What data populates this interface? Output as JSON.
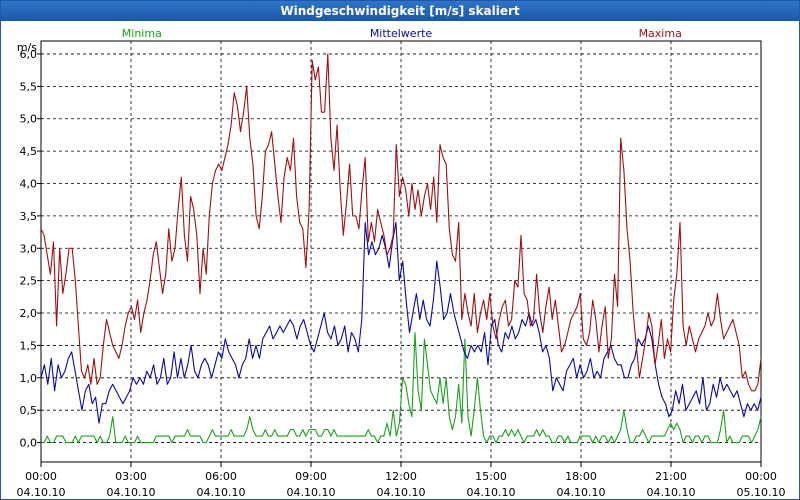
{
  "window": {
    "title": "Windgeschwindigkeit [m/s] skaliert"
  },
  "chart_data": {
    "type": "line",
    "title": "Windgeschwindigkeit [m/s] skaliert",
    "ylabel": "m/s",
    "ylim": [
      -0.3,
      6.2
    ],
    "yticks": [
      "0,0",
      "0,5",
      "1,0",
      "1,5",
      "2,0",
      "2,5",
      "3,0",
      "3,5",
      "4,0",
      "4,5",
      "5,0",
      "5,5",
      "6,0"
    ],
    "xlim": [
      0,
      24
    ],
    "xticks": [
      {
        "time": "00:00",
        "date": "04.10.10"
      },
      {
        "time": "03:00",
        "date": "04.10.10"
      },
      {
        "time": "06:00",
        "date": "04.10.10"
      },
      {
        "time": "09:00",
        "date": "04.10.10"
      },
      {
        "time": "12:00",
        "date": "04.10.10"
      },
      {
        "time": "15:00",
        "date": "04.10.10"
      },
      {
        "time": "18:00",
        "date": "04.10.10"
      },
      {
        "time": "21:00",
        "date": "04.10.10"
      },
      {
        "time": "00:00",
        "date": "05.10.10"
      }
    ],
    "grid": true,
    "legend_placement": "top",
    "series": [
      {
        "name": "Minima",
        "color": "#1aa01a",
        "values": [
          0.0,
          0.0,
          0.1,
          0.0,
          0.0,
          0.1,
          0.1,
          0.1,
          0.0,
          0.0,
          0.0,
          0.1,
          0.0,
          0.1,
          0.1,
          0.1,
          0.1,
          0.1,
          0.0,
          0.1,
          0.0,
          0.0,
          0.1,
          0.4,
          0.0,
          0.0,
          0.0,
          0.1,
          0.0,
          0.0,
          0.0,
          0.1,
          0.0,
          0.0,
          0.0,
          0.0,
          0.0,
          0.1,
          0.1,
          0.1,
          0.1,
          0.1,
          0.0,
          0.1,
          0.1,
          0.1,
          0.1,
          0.2,
          0.1,
          0.1,
          0.1,
          0.1,
          0.0,
          0.0,
          0.1,
          0.2,
          0.1,
          0.1,
          0.1,
          0.1,
          0.1,
          0.2,
          0.1,
          0.1,
          0.1,
          0.1,
          0.2,
          0.4,
          0.2,
          0.1,
          0.1,
          0.1,
          0.2,
          0.1,
          0.1,
          0.2,
          0.1,
          0.1,
          0.1,
          0.1,
          0.2,
          0.2,
          0.1,
          0.1,
          0.2,
          0.1,
          0.2,
          0.2,
          0.2,
          0.1,
          0.1,
          0.2,
          0.2,
          0.1,
          0.2,
          0.1,
          0.1,
          0.1,
          0.1,
          0.1,
          0.1,
          0.1,
          0.1,
          0.1,
          0.1,
          0.2,
          0.1,
          0.1,
          0.0,
          0.1,
          0.1,
          0.3,
          0.1,
          0.5,
          0.1,
          0.3,
          1.0,
          0.9,
          0.6,
          0.4,
          1.7,
          0.8,
          0.5,
          1.6,
          1.2,
          0.8,
          0.7,
          0.6,
          1.0,
          0.6,
          1.0,
          0.4,
          0.2,
          0.4,
          0.9,
          0.3,
          1.6,
          0.4,
          0.1,
          0.5,
          1.0,
          0.5,
          0.1,
          0.0,
          0.1,
          0.1,
          0.0,
          0.1,
          0.1,
          0.2,
          0.1,
          0.2,
          0.1,
          0.2,
          0.1,
          0.0,
          0.1,
          0.1,
          0.1,
          0.2,
          0.1,
          0.2,
          0.1,
          0.1,
          0.0,
          0.0,
          0.1,
          0.1,
          0.0,
          0.1,
          0.0,
          0.0,
          0.0,
          0.1,
          0.1,
          0.1,
          0.1,
          0.0,
          0.1,
          0.0,
          0.1,
          0.1,
          0.0,
          0.1,
          0.0,
          0.1,
          0.2,
          0.5,
          0.2,
          0.0,
          0.0,
          0.1,
          0.1,
          0.2,
          0.1,
          0.0,
          0.1,
          0.1,
          0.1,
          0.1,
          0.1,
          0.2,
          0.3,
          0.2,
          0.3,
          0.2,
          0.0,
          0.1,
          0.1,
          0.0,
          0.1,
          0.1,
          0.0,
          0.1,
          0.1,
          0.0,
          0.0,
          0.0,
          0.2,
          0.5,
          0.0,
          0.1,
          0.0,
          0.0,
          0.0,
          0.1,
          0.1,
          0.1,
          0.0,
          0.1,
          0.2,
          0.4
        ]
      },
      {
        "name": "Mittelwerte",
        "color": "#0a0a9e",
        "values": [
          1.0,
          1.2,
          0.9,
          1.3,
          0.8,
          1.2,
          1.0,
          1.1,
          1.3,
          1.4,
          1.1,
          0.8,
          0.5,
          0.8,
          0.9,
          0.6,
          0.7,
          0.3,
          0.6,
          0.6,
          0.8,
          0.9,
          0.8,
          0.7,
          0.6,
          0.7,
          0.8,
          1.0,
          0.9,
          1.0,
          0.9,
          1.1,
          1.0,
          1.2,
          0.9,
          1.0,
          1.3,
          0.9,
          1.0,
          1.4,
          1.0,
          1.3,
          1.0,
          1.2,
          1.5,
          1.1,
          1.0,
          1.2,
          1.3,
          1.2,
          1.0,
          1.2,
          1.4,
          1.3,
          1.6,
          1.4,
          1.3,
          1.2,
          1.0,
          1.2,
          1.3,
          1.6,
          1.3,
          1.5,
          1.3,
          1.6,
          1.7,
          1.8,
          1.6,
          1.7,
          1.8,
          1.7,
          1.8,
          1.9,
          1.8,
          1.6,
          1.8,
          1.9,
          1.7,
          1.5,
          1.4,
          1.6,
          1.8,
          2.0,
          1.7,
          1.6,
          1.8,
          1.5,
          1.6,
          1.8,
          1.4,
          1.7,
          1.6,
          1.4,
          1.9,
          3.4,
          2.9,
          3.1,
          2.9,
          3.0,
          3.2,
          3.0,
          2.7,
          3.1,
          3.4,
          2.5,
          2.8,
          2.2,
          1.7,
          2.0,
          2.3,
          1.9,
          2.2,
          1.9,
          1.8,
          2.2,
          2.8,
          2.4,
          1.9,
          2.0,
          2.3,
          2.0,
          1.8,
          1.6,
          1.4,
          1.3,
          1.5,
          1.4,
          1.5,
          1.4,
          1.7,
          1.2,
          1.8,
          1.9,
          1.5,
          1.4,
          1.7,
          1.6,
          1.8,
          1.6,
          1.7,
          1.9,
          1.8,
          2.0,
          1.8,
          1.9,
          1.7,
          1.4,
          1.5,
          1.3,
          0.8,
          1.0,
          0.9,
          0.8,
          1.1,
          1.2,
          1.3,
          1.0,
          1.2,
          1.0,
          1.1,
          1.3,
          1.0,
          1.1,
          1.0,
          1.3,
          1.4,
          1.5,
          1.3,
          1.2,
          1.2,
          1.0,
          1.0,
          1.2,
          1.3,
          1.6,
          1.5,
          1.6,
          1.8,
          1.6,
          1.2,
          0.9,
          0.7,
          0.6,
          0.4,
          0.5,
          0.8,
          0.6,
          0.9,
          0.5,
          0.6,
          0.7,
          0.8,
          0.6,
          1.0,
          0.5,
          0.6,
          0.9,
          0.7,
          1.0,
          0.8,
          0.9,
          0.8,
          0.7,
          0.8,
          0.6,
          0.4,
          0.6,
          0.5,
          0.6,
          0.5,
          0.7
        ]
      },
      {
        "name": "Maxima",
        "color": "#9e1010",
        "values": [
          3.3,
          3.2,
          2.9,
          2.6,
          3.1,
          1.8,
          3.0,
          2.3,
          2.6,
          3.0,
          3.0,
          2.5,
          1.8,
          1.1,
          1.0,
          1.2,
          0.9,
          1.3,
          0.9,
          1.0,
          1.5,
          1.9,
          1.7,
          1.5,
          1.4,
          1.3,
          1.5,
          1.8,
          2.0,
          2.1,
          1.9,
          2.2,
          1.7,
          2.0,
          2.2,
          2.5,
          2.9,
          3.1,
          2.7,
          2.3,
          2.6,
          3.3,
          2.8,
          3.0,
          3.6,
          4.1,
          3.2,
          2.8,
          3.8,
          3.6,
          3.2,
          2.3,
          3.0,
          2.6,
          3.5,
          4.0,
          4.2,
          4.3,
          4.2,
          4.4,
          4.6,
          4.9,
          5.4,
          5.2,
          4.8,
          5.1,
          5.5,
          4.7,
          4.3,
          3.5,
          3.3,
          3.8,
          4.5,
          4.6,
          4.8,
          4.3,
          3.8,
          3.4,
          4.1,
          4.4,
          4.2,
          4.7,
          3.8,
          3.4,
          3.3,
          2.7,
          3.6,
          5.9,
          5.6,
          5.8,
          5.1,
          5.1,
          6.0,
          4.7,
          4.2,
          4.9,
          3.9,
          3.2,
          3.7,
          4.3,
          3.5,
          3.5,
          3.3,
          3.9,
          4.4,
          3.1,
          3.4,
          3.1,
          3.6,
          3.4,
          3.2,
          2.9,
          3.0,
          3.2,
          4.6,
          3.8,
          4.1,
          3.9,
          3.5,
          4.0,
          3.6,
          3.9,
          3.5,
          3.8,
          4.0,
          3.6,
          4.1,
          3.4,
          4.6,
          4.4,
          4.3,
          3.3,
          2.9,
          2.8,
          3.4,
          1.9,
          2.3,
          2.0,
          1.8,
          2.3,
          1.7,
          2.0,
          2.2,
          1.9,
          2.3,
          1.8,
          1.6,
          1.9,
          2.1,
          2.2,
          1.8,
          1.9,
          2.5,
          2.4,
          3.2,
          2.3,
          2.2,
          1.8,
          1.9,
          2.6,
          2.0,
          1.7,
          2.1,
          2.4,
          1.9,
          2.2,
          1.8,
          1.4,
          1.5,
          1.7,
          1.9,
          2.0,
          2.1,
          2.3,
          1.6,
          1.5,
          1.7,
          2.2,
          1.9,
          1.4,
          1.8,
          2.1,
          1.3,
          1.6,
          2.6,
          2.1,
          4.7,
          4.2,
          3.3,
          2.8,
          2.0,
          1.5,
          1.0,
          1.3,
          1.6,
          2.0,
          1.8,
          1.2,
          1.5,
          1.9,
          1.3,
          1.6,
          1.4,
          2.2,
          2.6,
          3.4,
          1.8,
          1.5,
          1.8,
          1.6,
          1.4,
          1.6,
          1.7,
          1.8,
          2.0,
          1.8,
          1.9,
          2.3,
          1.9,
          1.6,
          1.7,
          1.8,
          1.9,
          1.7,
          1.5,
          1.0,
          1.1,
          0.9,
          0.8,
          0.8,
          0.9,
          1.3
        ]
      }
    ]
  }
}
